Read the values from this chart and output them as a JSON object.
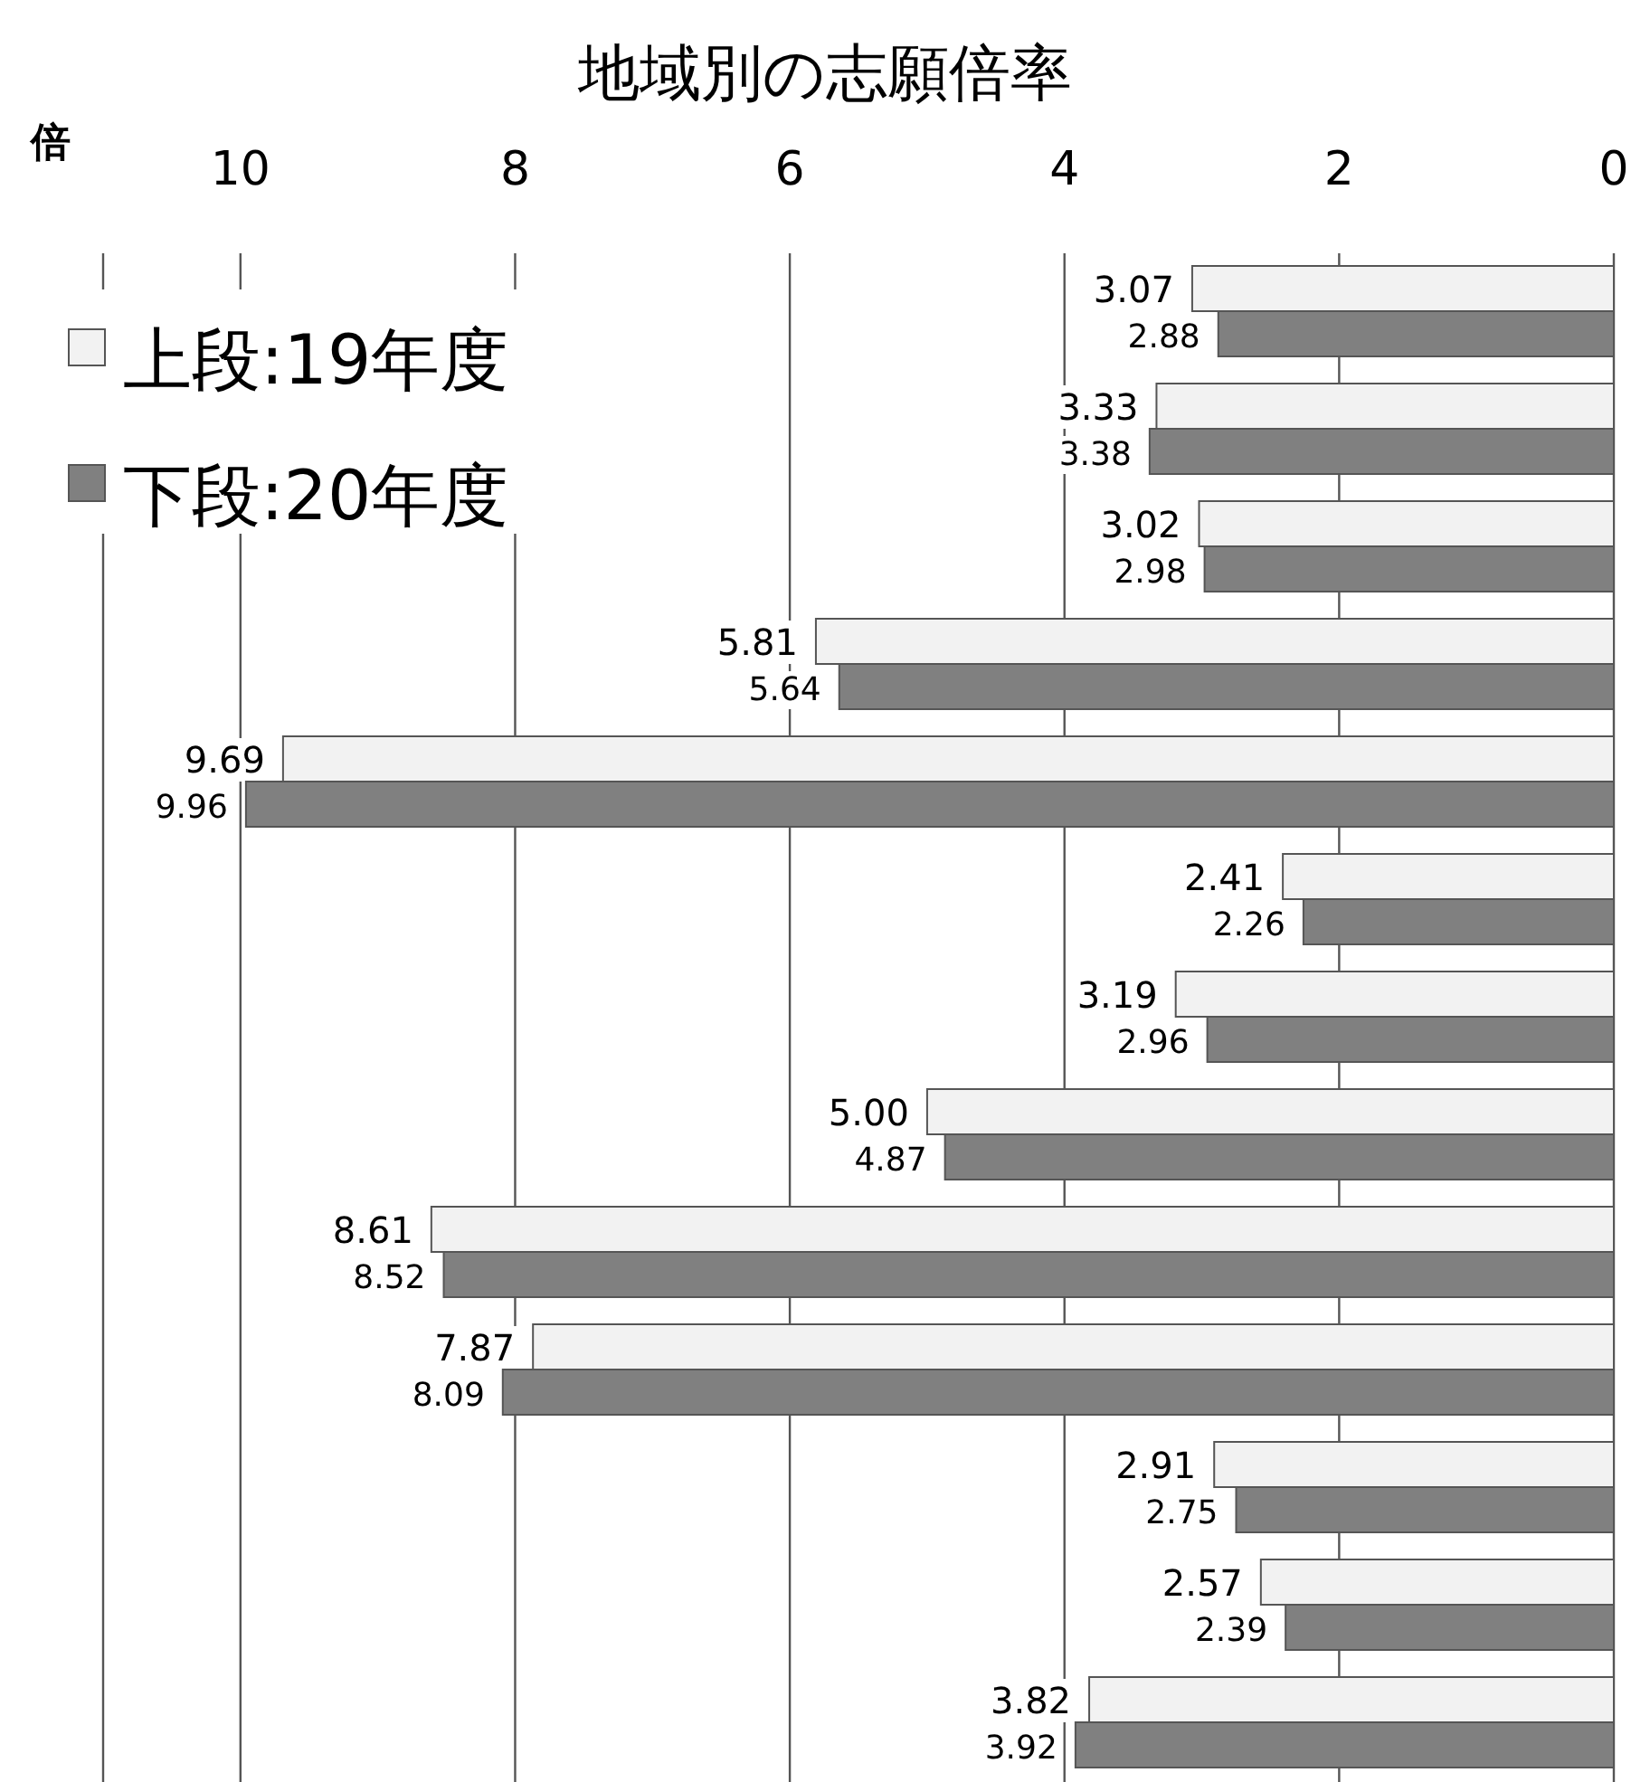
{
  "chart_data": {
    "type": "bar",
    "orientation": "horizontal",
    "title": "地域別の志願倍率",
    "xlabel": "倍",
    "categories": [
      null,
      null,
      null,
      null,
      null,
      null,
      null,
      null,
      null,
      null,
      null,
      null,
      null
    ],
    "series": [
      {
        "name": "上段:19年度",
        "color": "#f2f2f2",
        "values": [
          3.07,
          3.33,
          3.02,
          5.81,
          9.69,
          2.41,
          3.19,
          5.0,
          8.61,
          7.87,
          2.91,
          2.57,
          3.82
        ],
        "value_labels": [
          "3.07",
          "3.33",
          "3.02",
          "5.81",
          "9.69",
          "2.41",
          "3.19",
          "5.00",
          "8.61",
          "7.87",
          "2.91",
          "2.57",
          "3.82"
        ]
      },
      {
        "name": "下段:20年度",
        "color": "#808080",
        "values": [
          2.88,
          3.38,
          2.98,
          5.64,
          9.96,
          2.26,
          2.96,
          4.87,
          8.52,
          8.09,
          2.75,
          2.39,
          3.92
        ],
        "value_labels": [
          "2.88",
          "3.38",
          "2.98",
          "5.64",
          "9.96",
          "2.26",
          "2.96",
          "4.87",
          "8.52",
          "8.09",
          "2.75",
          "2.39",
          "3.92"
        ]
      }
    ],
    "xlim": [
      11,
      0
    ],
    "xticks": [
      10,
      8,
      6,
      4,
      2,
      0
    ],
    "grid": "x",
    "legend": "top left"
  }
}
